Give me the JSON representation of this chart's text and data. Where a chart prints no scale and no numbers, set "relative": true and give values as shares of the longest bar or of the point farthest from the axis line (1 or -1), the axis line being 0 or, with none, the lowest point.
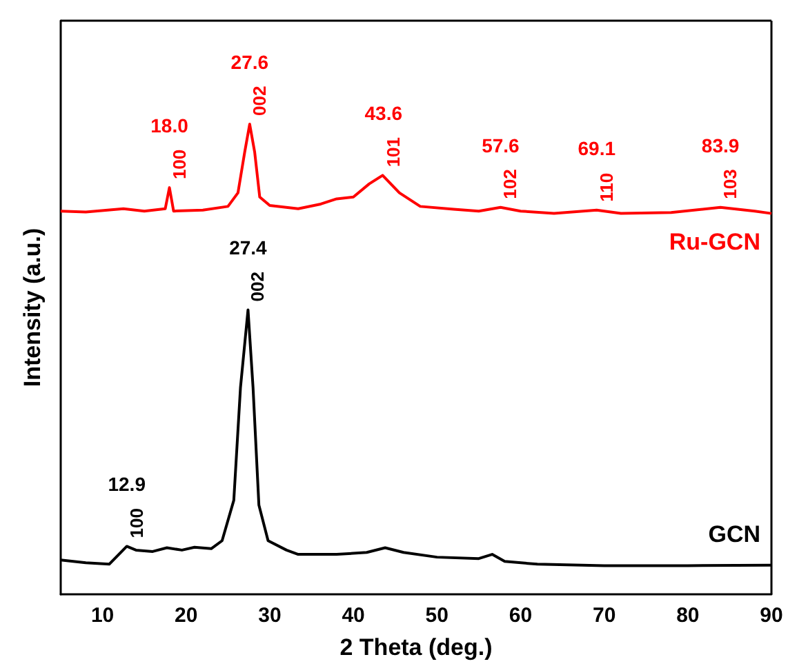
{
  "chart_data": {
    "type": "line",
    "relative": true,
    "xlabel": "2 Theta (deg.)",
    "ylabel": "Intensity (a.u.)",
    "xlim": [
      5,
      90
    ],
    "xticks": [
      10,
      20,
      30,
      40,
      50,
      60,
      70,
      80,
      90
    ],
    "grid": false,
    "legend": false,
    "marker": "none",
    "line_style": "solid",
    "series": [
      {
        "name": "Ru-GCN",
        "color": "#ff0000",
        "x": [
          5,
          8,
          12.5,
          15,
          17.5,
          18,
          18.5,
          22,
          25,
          26.2,
          27,
          27.6,
          28.2,
          28.8,
          30,
          33.4,
          36.1,
          38,
          40,
          41.9,
          43.5,
          45.5,
          48,
          52,
          55,
          57.6,
          60,
          64,
          69.1,
          72,
          78,
          83.9,
          88,
          90
        ],
        "values": [
          0.815,
          0.813,
          0.82,
          0.815,
          0.82,
          0.865,
          0.815,
          0.817,
          0.825,
          0.854,
          0.94,
          1.0,
          0.94,
          0.845,
          0.827,
          0.82,
          0.83,
          0.841,
          0.845,
          0.873,
          0.891,
          0.854,
          0.825,
          0.819,
          0.815,
          0.823,
          0.815,
          0.81,
          0.817,
          0.81,
          0.812,
          0.823,
          0.815,
          0.81
        ]
      },
      {
        "name": "GCN",
        "color": "#000000",
        "x": [
          5,
          8,
          10.8,
          12.9,
          14,
          16,
          17.7,
          19.5,
          21,
          23,
          24.3,
          25.7,
          26.5,
          27.4,
          28,
          28.7,
          29.8,
          32,
          33.4,
          38,
          41.6,
          43.8,
          46,
          50,
          55,
          56.6,
          58.1,
          62,
          70,
          80,
          90
        ],
        "values": [
          0.073,
          0.067,
          0.064,
          0.102,
          0.094,
          0.091,
          0.099,
          0.094,
          0.1,
          0.097,
          0.114,
          0.2,
          0.44,
          0.605,
          0.44,
          0.19,
          0.114,
          0.094,
          0.085,
          0.085,
          0.089,
          0.099,
          0.089,
          0.079,
          0.076,
          0.085,
          0.07,
          0.064,
          0.061,
          0.061,
          0.062
        ]
      }
    ],
    "annotations": [
      {
        "text": "18.0",
        "x": 18,
        "y": 0.865
      },
      {
        "text": "100",
        "x": 18,
        "y": 0.865
      },
      {
        "text": "27.6",
        "x": 27.6,
        "y": 1.0
      },
      {
        "text": "002",
        "x": 27.6,
        "y": 1.0
      },
      {
        "text": "43.6",
        "x": 43.6,
        "y": 0.891
      },
      {
        "text": "101",
        "x": 43.6,
        "y": 0.891
      },
      {
        "text": "57.6",
        "x": 57.6,
        "y": 0.823
      },
      {
        "text": "102",
        "x": 57.6,
        "y": 0.823
      },
      {
        "text": "69.1",
        "x": 69.1,
        "y": 0.817
      },
      {
        "text": "110",
        "x": 69.1,
        "y": 0.817
      },
      {
        "text": "83.9",
        "x": 83.9,
        "y": 0.823
      },
      {
        "text": "103",
        "x": 83.9,
        "y": 0.823
      },
      {
        "text": "27.4",
        "x": 27.4,
        "y": 0.605
      },
      {
        "text": "002",
        "x": 27.4,
        "y": 0.605
      },
      {
        "text": "12.9",
        "x": 12.9,
        "y": 0.102
      },
      {
        "text": "100",
        "x": 12.9,
        "y": 0.102
      }
    ]
  }
}
